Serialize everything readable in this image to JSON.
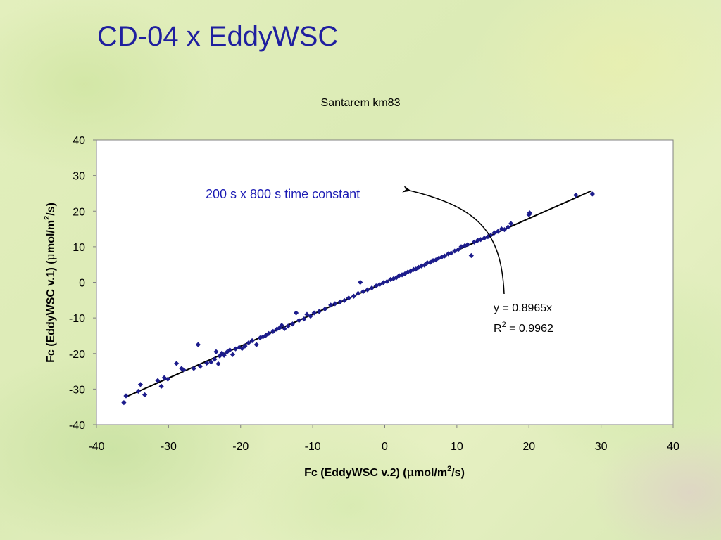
{
  "slide": {
    "title": "CD-04 x EddyWSC"
  },
  "chart_data": {
    "type": "scatter",
    "title": "Santarem km83",
    "xlabel_parts": [
      "Fc (EddyWSC v.2) (",
      "μ",
      "mol/m",
      "2",
      "/s)"
    ],
    "ylabel_parts": [
      "Fc (EddyWSC v.1) (",
      "μ",
      "mol/m",
      "2",
      "/s)"
    ],
    "xlim": [
      -40,
      40
    ],
    "ylim": [
      -40,
      40
    ],
    "xticks": [
      -40,
      -30,
      -20,
      -10,
      0,
      10,
      20,
      30,
      40
    ],
    "yticks": [
      -40,
      -30,
      -20,
      -10,
      0,
      10,
      20,
      30,
      40
    ],
    "xtick_labels": [
      "-40",
      "-30",
      "-20",
      "-10",
      "0",
      "10",
      "20",
      "30",
      "40"
    ],
    "ytick_labels": [
      "-40",
      "-30",
      "-20",
      "-10",
      "0",
      "10",
      "20",
      "30",
      "40"
    ],
    "grid": false,
    "marker_color": "#1c1c8c",
    "trendline": {
      "slope": 0.8965,
      "intercept": 0,
      "x_range": [
        -36,
        28.7
      ]
    },
    "annotations": {
      "time_constant": "200 s x 800 s time constant",
      "equation": "y = 0.8965x",
      "r2_prefix": "R",
      "r2_sup": "2",
      "r2_suffix": " = 0.9962"
    },
    "points": [
      [
        -36.2,
        -33.8
      ],
      [
        -35.9,
        -31.9
      ],
      [
        -33.9,
        -28.7
      ],
      [
        -34.2,
        -30.6
      ],
      [
        -33.3,
        -31.6
      ],
      [
        -31.5,
        -27.6
      ],
      [
        -31.0,
        -29.2
      ],
      [
        -30.6,
        -26.8
      ],
      [
        -30.1,
        -27.2
      ],
      [
        -28.9,
        -22.8
      ],
      [
        -28.2,
        -24.2
      ],
      [
        -27.9,
        -24.6
      ],
      [
        -26.5,
        -24.2
      ],
      [
        -25.9,
        -17.5
      ],
      [
        -25.6,
        -23.6
      ],
      [
        -24.7,
        -22.7
      ],
      [
        -24.1,
        -22.4
      ],
      [
        -23.6,
        -21.6
      ],
      [
        -23.4,
        -19.5
      ],
      [
        -23.1,
        -22.9
      ],
      [
        -22.9,
        -20.7
      ],
      [
        -22.6,
        -19.9
      ],
      [
        -22.3,
        -20.5
      ],
      [
        -21.9,
        -19.6
      ],
      [
        -21.5,
        -19.0
      ],
      [
        -21.1,
        -20.3
      ],
      [
        -20.7,
        -18.7
      ],
      [
        -20.2,
        -18.3
      ],
      [
        -19.8,
        -18.6
      ],
      [
        -19.4,
        -17.9
      ],
      [
        -18.9,
        -17.0
      ],
      [
        -18.4,
        -16.4
      ],
      [
        -17.8,
        -17.5
      ],
      [
        -17.3,
        -15.6
      ],
      [
        -16.9,
        -15.3
      ],
      [
        -16.5,
        -14.9
      ],
      [
        -16.1,
        -14.4
      ],
      [
        -15.5,
        -13.8
      ],
      [
        -15.0,
        -13.2
      ],
      [
        -14.6,
        -12.8
      ],
      [
        -14.3,
        -12.1
      ],
      [
        -13.9,
        -13.0
      ],
      [
        -13.4,
        -12.3
      ],
      [
        -12.8,
        -11.7
      ],
      [
        -12.3,
        -8.6
      ],
      [
        -11.9,
        -10.7
      ],
      [
        -11.2,
        -10.3
      ],
      [
        -10.8,
        -9.0
      ],
      [
        -10.3,
        -9.5
      ],
      [
        -9.8,
        -8.6
      ],
      [
        -9.1,
        -8.2
      ],
      [
        -8.3,
        -7.5
      ],
      [
        -7.5,
        -6.4
      ],
      [
        -6.9,
        -6.0
      ],
      [
        -6.2,
        -5.5
      ],
      [
        -5.6,
        -5.1
      ],
      [
        -5.0,
        -4.4
      ],
      [
        -4.3,
        -3.9
      ],
      [
        -3.7,
        -3.1
      ],
      [
        -3.4,
        0.0
      ],
      [
        -3.0,
        -2.6
      ],
      [
        -2.4,
        -2.1
      ],
      [
        -1.8,
        -1.6
      ],
      [
        -1.2,
        -1.0
      ],
      [
        -0.7,
        -0.6
      ],
      [
        -0.2,
        -0.1
      ],
      [
        0.3,
        0.2
      ],
      [
        0.8,
        0.8
      ],
      [
        1.2,
        1.0
      ],
      [
        1.6,
        1.3
      ],
      [
        2.0,
        1.9
      ],
      [
        2.4,
        2.1
      ],
      [
        2.8,
        2.4
      ],
      [
        3.2,
        2.9
      ],
      [
        3.6,
        3.2
      ],
      [
        4.0,
        3.6
      ],
      [
        4.3,
        3.7
      ],
      [
        4.7,
        4.2
      ],
      [
        5.1,
        4.6
      ],
      [
        5.5,
        4.8
      ],
      [
        5.9,
        5.5
      ],
      [
        6.3,
        5.6
      ],
      [
        6.7,
        6.1
      ],
      [
        7.1,
        6.3
      ],
      [
        7.5,
        6.8
      ],
      [
        7.9,
        7.1
      ],
      [
        8.3,
        7.4
      ],
      [
        8.8,
        8.0
      ],
      [
        9.2,
        8.2
      ],
      [
        9.7,
        8.8
      ],
      [
        10.2,
        9.2
      ],
      [
        10.6,
        10.0
      ],
      [
        11.1,
        10.3
      ],
      [
        11.5,
        10.6
      ],
      [
        12.0,
        7.5
      ],
      [
        12.4,
        11.3
      ],
      [
        12.9,
        11.8
      ],
      [
        13.3,
        12.0
      ],
      [
        13.8,
        12.4
      ],
      [
        14.3,
        12.8
      ],
      [
        14.7,
        13.2
      ],
      [
        15.2,
        13.9
      ],
      [
        15.7,
        14.3
      ],
      [
        16.2,
        15.0
      ],
      [
        16.6,
        14.8
      ],
      [
        17.1,
        15.5
      ],
      [
        17.5,
        16.5
      ],
      [
        20.0,
        19.0
      ],
      [
        20.1,
        19.5
      ],
      [
        26.5,
        24.5
      ],
      [
        28.8,
        24.8
      ]
    ]
  }
}
